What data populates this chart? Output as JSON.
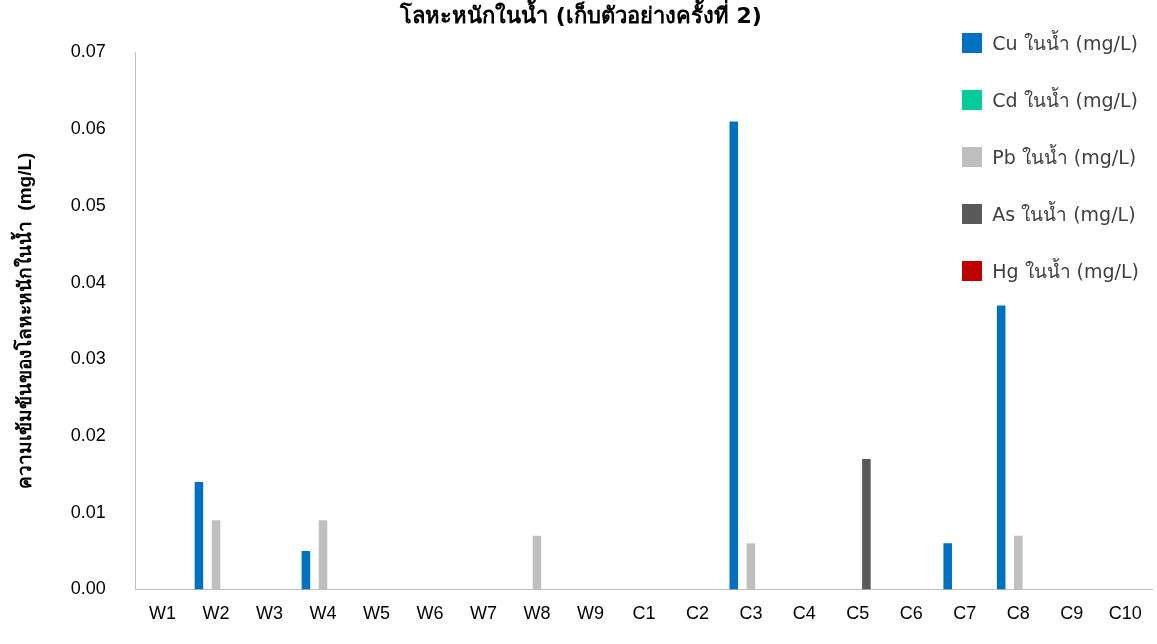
{
  "chart_data": {
    "type": "bar",
    "title": "โลหะหนักในน้ำ (เก็บตัวอย่างครั้งที่ 2)",
    "ylabel": "ความเข้มข้นของโลหะหนักในน้ำ  (mg/L)",
    "categories": [
      "W1",
      "W2",
      "W3",
      "W4",
      "W5",
      "W6",
      "W7",
      "W8",
      "W9",
      "C1",
      "C2",
      "C3",
      "C4",
      "C5",
      "C6",
      "C7",
      "C8",
      "C9",
      "C10"
    ],
    "series": [
      {
        "name": "Cu ในน้ำ (mg/L)",
        "color": "#0070c0",
        "values": [
          0,
          0.014,
          0,
          0.005,
          0,
          0,
          0,
          0,
          0,
          0,
          0,
          0.061,
          0,
          0,
          0,
          0.006,
          0.037,
          0,
          0
        ]
      },
      {
        "name": "Cd ในน้ำ (mg/L)",
        "color": "#00cc99",
        "values": [
          0,
          0,
          0,
          0,
          0,
          0,
          0,
          0,
          0,
          0,
          0,
          0,
          0,
          0,
          0,
          0,
          0,
          0,
          0
        ]
      },
      {
        "name": "Pb ในน้ำ (mg/L)",
        "color": "#bfbfbf",
        "values": [
          0,
          0.009,
          0,
          0.009,
          0,
          0,
          0,
          0.007,
          0,
          0,
          0,
          0.006,
          0,
          0,
          0,
          0,
          0.007,
          0,
          0
        ]
      },
      {
        "name": "As ในน้ำ (mg/L)",
        "color": "#595959",
        "values": [
          0,
          0,
          0,
          0,
          0,
          0,
          0,
          0,
          0,
          0,
          0,
          0,
          0,
          0.017,
          0,
          0,
          0,
          0,
          0
        ]
      },
      {
        "name": "Hg ในน้ำ (mg/L)",
        "color": "#c00000",
        "values": [
          0,
          0,
          0,
          0,
          0,
          0,
          0,
          0,
          0,
          0,
          0,
          0,
          0,
          0,
          0,
          0,
          0,
          0,
          0
        ]
      }
    ],
    "ylim": [
      0,
      0.07
    ],
    "yticks": [
      {
        "value": 0,
        "label": "0.00"
      },
      0.01,
      0.02,
      0.03,
      0.04,
      0.05,
      0.06,
      0.07
    ],
    "grid": false,
    "legend": "top right"
  }
}
